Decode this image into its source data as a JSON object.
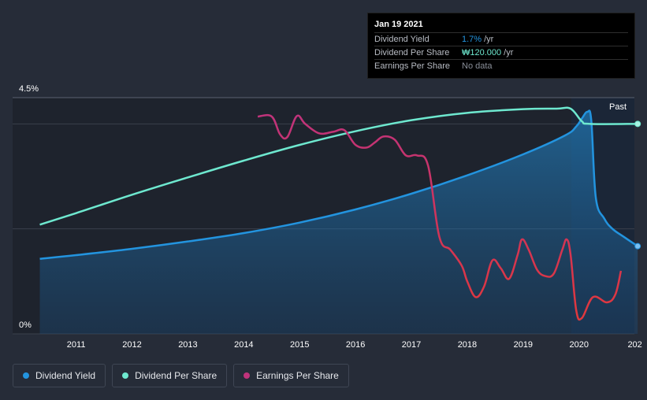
{
  "chart_data": {
    "type": "line",
    "title": "",
    "y_axis": {
      "top_label": "4.5%",
      "bottom_label": "0%",
      "ylim": [
        0,
        4.5
      ]
    },
    "x_ticks": [
      "2011",
      "2012",
      "2013",
      "2014",
      "2015",
      "2016",
      "2017",
      "2018",
      "2019",
      "2020",
      "202"
    ],
    "x_range": [
      2010.3,
      2021.05
    ],
    "past_label": "Past",
    "series": [
      {
        "name": "Dividend Yield",
        "color": "#2394df",
        "filled": true,
        "points": [
          [
            2010.35,
            1.43
          ],
          [
            2011,
            1.5
          ],
          [
            2012,
            1.62
          ],
          [
            2013,
            1.76
          ],
          [
            2014,
            1.92
          ],
          [
            2015,
            2.12
          ],
          [
            2016,
            2.37
          ],
          [
            2017,
            2.67
          ],
          [
            2018,
            3.02
          ],
          [
            2019,
            3.42
          ],
          [
            2019.75,
            3.78
          ],
          [
            2019.95,
            3.95
          ],
          [
            2020.05,
            4.1
          ],
          [
            2020.15,
            4.23
          ],
          [
            2020.22,
            4.06
          ],
          [
            2020.3,
            2.6
          ],
          [
            2020.45,
            2.2
          ],
          [
            2020.6,
            2.0
          ],
          [
            2020.8,
            1.85
          ],
          [
            2021.05,
            1.67
          ]
        ]
      },
      {
        "name": "Dividend Per Share",
        "color": "#6ee8cf",
        "filled": false,
        "points": [
          [
            2010.35,
            2.08
          ],
          [
            2011,
            2.3
          ],
          [
            2012,
            2.65
          ],
          [
            2013,
            2.98
          ],
          [
            2014,
            3.3
          ],
          [
            2015,
            3.6
          ],
          [
            2016,
            3.86
          ],
          [
            2017,
            4.07
          ],
          [
            2018,
            4.21
          ],
          [
            2019,
            4.28
          ],
          [
            2019.6,
            4.29
          ],
          [
            2019.85,
            4.29
          ],
          [
            2020.05,
            4.05
          ],
          [
            2020.2,
            4.0
          ],
          [
            2021.05,
            4.0
          ]
        ]
      },
      {
        "name": "Earnings Per Share",
        "color_start": "#c0337b",
        "color_end": "#e0383c",
        "filled": false,
        "points": [
          [
            2014.25,
            4.14
          ],
          [
            2014.5,
            4.14
          ],
          [
            2014.65,
            3.8
          ],
          [
            2014.78,
            3.75
          ],
          [
            2014.95,
            4.15
          ],
          [
            2015.1,
            4.0
          ],
          [
            2015.35,
            3.82
          ],
          [
            2015.6,
            3.85
          ],
          [
            2015.8,
            3.88
          ],
          [
            2016.0,
            3.6
          ],
          [
            2016.2,
            3.55
          ],
          [
            2016.35,
            3.65
          ],
          [
            2016.5,
            3.76
          ],
          [
            2016.7,
            3.7
          ],
          [
            2016.9,
            3.4
          ],
          [
            2017.1,
            3.4
          ],
          [
            2017.3,
            3.2
          ],
          [
            2017.5,
            1.85
          ],
          [
            2017.7,
            1.6
          ],
          [
            2017.9,
            1.3
          ],
          [
            2018.0,
            1.0
          ],
          [
            2018.15,
            0.7
          ],
          [
            2018.3,
            0.9
          ],
          [
            2018.45,
            1.4
          ],
          [
            2018.6,
            1.25
          ],
          [
            2018.75,
            1.05
          ],
          [
            2018.9,
            1.5
          ],
          [
            2018.98,
            1.8
          ],
          [
            2019.1,
            1.6
          ],
          [
            2019.25,
            1.22
          ],
          [
            2019.4,
            1.1
          ],
          [
            2019.55,
            1.15
          ],
          [
            2019.7,
            1.6
          ],
          [
            2019.78,
            1.8
          ],
          [
            2019.85,
            1.5
          ],
          [
            2019.95,
            0.45
          ],
          [
            2020.05,
            0.3
          ],
          [
            2020.25,
            0.7
          ],
          [
            2020.5,
            0.6
          ],
          [
            2020.65,
            0.75
          ],
          [
            2020.75,
            1.2
          ]
        ]
      }
    ]
  },
  "tooltip": {
    "date": "Jan 19 2021",
    "rows": [
      {
        "label": "Dividend Yield",
        "value": "1.7%",
        "suffix": "/yr",
        "color": "#2394df"
      },
      {
        "label": "Dividend Per Share",
        "value": "₩120.000",
        "suffix": "/yr",
        "color": "#6ee8cf"
      },
      {
        "label": "Earnings Per Share",
        "value": "No data",
        "suffix": "",
        "color": "#8a8f99"
      }
    ]
  },
  "legend": [
    {
      "label": "Dividend Yield",
      "color": "#2394df"
    },
    {
      "label": "Dividend Per Share",
      "color": "#6ee8cf"
    },
    {
      "label": "Earnings Per Share",
      "color": "#c0337b"
    }
  ]
}
